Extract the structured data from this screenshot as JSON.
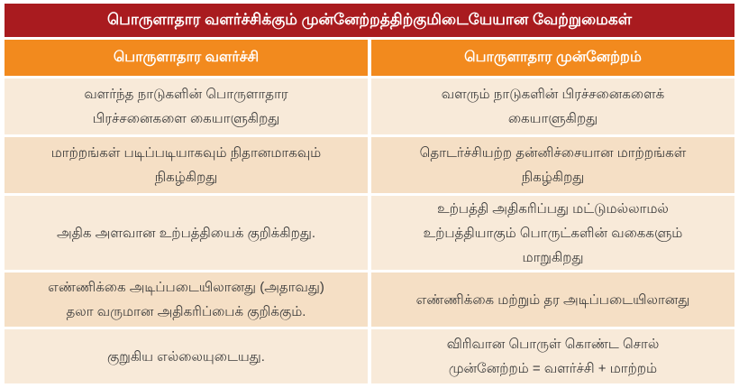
{
  "title": "பொருளாதார வளர்ச்சிக்கும் முன்னேற்றத்திற்குமிடையேயான வேற்றுமைகள்",
  "columns": [
    "பொருளாதார வளர்ச்சி",
    "பொருளாதார முன்னேற்றம்"
  ],
  "rows": [
    {
      "left": "வளர்ந்த நாடுகளின் பொருளாதார\nபிரச்சனைகளை கையாளுகிறது",
      "right": "வளரும் நாடுகளின் பிரச்சனைகளைக்\nகையாளுகிறது"
    },
    {
      "left": "மாற்றங்கள் படிப்படியாகவும் நிதானமாகவும்\nநிகழ்கிறது",
      "right": "தொடர்ச்சியற்ற தன்னிச்சையான மாற்றங்கள்\nநிகழ்கிறது"
    },
    {
      "left": "அதிக அளவான உற்பத்தியைக் குறிக்கிறது.",
      "right": "உற்பத்தி அதிகரிப்பது மட்டுமல்லாமல்\nஉற்பத்தியாகும் பொருட்களின் வகைகளும்\nமாறுகிறது"
    },
    {
      "left": "எண்ணிக்கை அடிப்படையிலானது (அதாவது)\nதலா வருமான அதிகரிப்பைக் குறிக்கும்.",
      "right": "எண்ணிக்கை மற்றும் தர அடிப்படையிலானது"
    },
    {
      "left": "குறுகிய எல்லையுடையது.",
      "right": "விரிவான பொருள் கொண்ட சொல்\nமுன்னேற்றம் = வளர்ச்சி + மாற்றம்"
    }
  ],
  "colors": {
    "title_bg": "#A91B1F",
    "title_text": "#FFFFFF",
    "header_bg": "#F28A1E",
    "header_text": "#FFFFFF",
    "row_light_bg": "#F8EAD9",
    "row_dark_bg": "#F5DFC5",
    "body_text": "#3B3B3B",
    "page_bg": "#FFFFFF"
  }
}
